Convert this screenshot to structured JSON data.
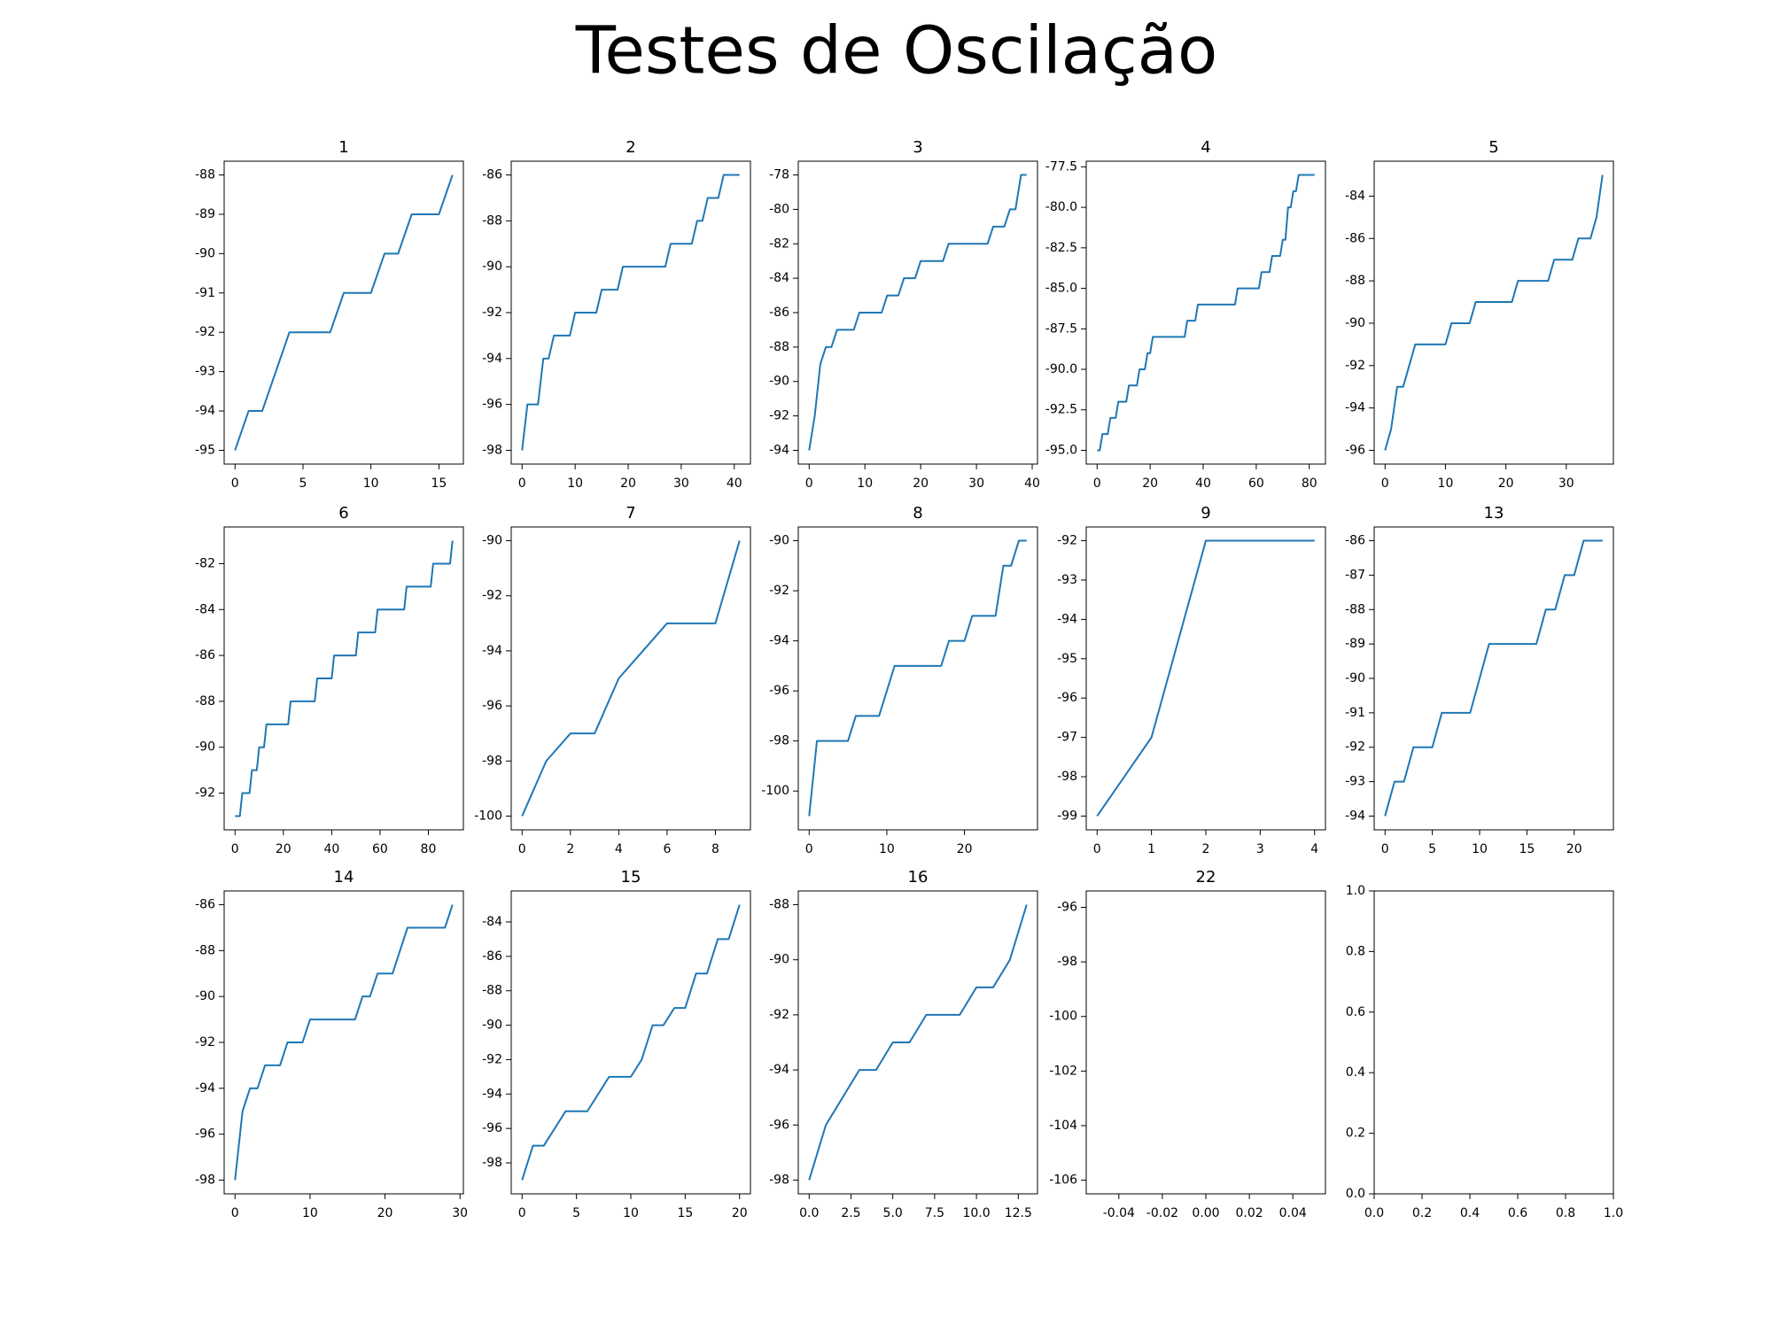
{
  "title": "Testes de Oscilação",
  "chart_data": [
    {
      "type": "line",
      "title": "1",
      "color": "#1f77b4",
      "x": [
        0,
        1,
        2,
        3,
        4,
        5,
        6,
        7,
        8,
        9,
        10,
        11,
        12,
        13,
        14,
        15,
        16
      ],
      "values": [
        -95,
        -94,
        -94,
        -93,
        -92,
        -92,
        -92,
        -92,
        -91,
        -91,
        -91,
        -90,
        -90,
        -89,
        -89,
        -89,
        -88
      ],
      "xlim": [
        -0.8,
        16.8
      ],
      "ylim": [
        -95.35,
        -87.65
      ],
      "xticks": [
        0,
        5,
        10,
        15
      ],
      "yticks": [
        -95,
        -94,
        -93,
        -92,
        -91,
        -90,
        -89,
        -88
      ]
    },
    {
      "type": "line",
      "title": "2",
      "color": "#1f77b4",
      "x": [
        0,
        1,
        2,
        3,
        4,
        5,
        6,
        7,
        8,
        9,
        10,
        11,
        12,
        13,
        14,
        15,
        16,
        17,
        18,
        19,
        20,
        21,
        22,
        23,
        24,
        25,
        26,
        27,
        28,
        29,
        30,
        31,
        32,
        33,
        34,
        35,
        36,
        37,
        38,
        39,
        40,
        41
      ],
      "values": [
        -98,
        -96,
        -96,
        -96,
        -94,
        -94,
        -93,
        -93,
        -93,
        -93,
        -92,
        -92,
        -92,
        -92,
        -92,
        -91,
        -91,
        -91,
        -91,
        -90,
        -90,
        -90,
        -90,
        -90,
        -90,
        -90,
        -90,
        -90,
        -89,
        -89,
        -89,
        -89,
        -89,
        -88,
        -88,
        -87,
        -87,
        -87,
        -86,
        -86,
        -86,
        -86
      ],
      "xlim": [
        -2.05,
        43.05
      ],
      "ylim": [
        -98.6,
        -85.4
      ],
      "xticks": [
        0,
        10,
        20,
        30,
        40
      ],
      "yticks": [
        -98,
        -96,
        -94,
        -92,
        -90,
        -88,
        -86
      ]
    },
    {
      "type": "line",
      "title": "3",
      "color": "#1f77b4",
      "x": [
        0,
        1,
        2,
        3,
        4,
        5,
        6,
        7,
        8,
        9,
        10,
        11,
        12,
        13,
        14,
        15,
        16,
        17,
        18,
        19,
        20,
        21,
        22,
        23,
        24,
        25,
        26,
        27,
        28,
        29,
        30,
        31,
        32,
        33,
        34,
        35,
        36,
        37,
        38,
        39
      ],
      "values": [
        -94,
        -92,
        -89,
        -88,
        -88,
        -87,
        -87,
        -87,
        -87,
        -86,
        -86,
        -86,
        -86,
        -86,
        -85,
        -85,
        -85,
        -84,
        -84,
        -84,
        -83,
        -83,
        -83,
        -83,
        -83,
        -82,
        -82,
        -82,
        -82,
        -82,
        -82,
        -82,
        -82,
        -81,
        -81,
        -81,
        -80,
        -80,
        -78,
        -78
      ],
      "xlim": [
        -1.95,
        40.95
      ],
      "ylim": [
        -94.8,
        -77.2
      ],
      "xticks": [
        0,
        10,
        20,
        30,
        40
      ],
      "yticks": [
        -94,
        -92,
        -90,
        -88,
        -86,
        -84,
        -82,
        -80,
        -78
      ]
    },
    {
      "type": "line",
      "title": "4",
      "color": "#1f77b4",
      "x": [
        0,
        1,
        2,
        3,
        4,
        5,
        6,
        7,
        8,
        9,
        10,
        11,
        12,
        13,
        14,
        15,
        16,
        17,
        18,
        19,
        20,
        21,
        22,
        23,
        24,
        25,
        26,
        27,
        28,
        29,
        30,
        31,
        32,
        33,
        34,
        35,
        36,
        37,
        38,
        39,
        40,
        41,
        42,
        43,
        44,
        45,
        46,
        47,
        48,
        49,
        50,
        51,
        52,
        53,
        54,
        55,
        56,
        57,
        58,
        59,
        60,
        61,
        62,
        63,
        64,
        65,
        66,
        67,
        68,
        69,
        70,
        71,
        72,
        73,
        74,
        75,
        76,
        77,
        78,
        79,
        80,
        81,
        82
      ],
      "values": [
        -95,
        -95,
        -94,
        -94,
        -94,
        -93,
        -93,
        -93,
        -92,
        -92,
        -92,
        -92,
        -91,
        -91,
        -91,
        -91,
        -90,
        -90,
        -90,
        -89,
        -89,
        -88,
        -88,
        -88,
        -88,
        -88,
        -88,
        -88,
        -88,
        -88,
        -88,
        -88,
        -88,
        -88,
        -87,
        -87,
        -87,
        -87,
        -86,
        -86,
        -86,
        -86,
        -86,
        -86,
        -86,
        -86,
        -86,
        -86,
        -86,
        -86,
        -86,
        -86,
        -86,
        -85,
        -85,
        -85,
        -85,
        -85,
        -85,
        -85,
        -85,
        -85,
        -84,
        -84,
        -84,
        -84,
        -83,
        -83,
        -83,
        -83,
        -82,
        -82,
        -80,
        -80,
        -79,
        -79,
        -78,
        -78,
        -78,
        -78,
        -78,
        -78,
        -78
      ],
      "xlim": [
        -4.1,
        86.1
      ],
      "ylim": [
        -95.85,
        -77.15
      ],
      "xticks": [
        0,
        20,
        40,
        60,
        80
      ],
      "yticks": [
        {
          "value": -95,
          "label": "-95.0"
        },
        -92.5,
        {
          "value": -90,
          "label": "-90.0"
        },
        -87.5,
        {
          "value": -85,
          "label": "-85.0"
        },
        -82.5,
        {
          "value": -80,
          "label": "-80.0"
        },
        -77.5
      ]
    },
    {
      "type": "line",
      "title": "5",
      "color": "#1f77b4",
      "x": [
        0,
        1,
        2,
        3,
        4,
        5,
        6,
        7,
        8,
        9,
        10,
        11,
        12,
        13,
        14,
        15,
        16,
        17,
        18,
        19,
        20,
        21,
        22,
        23,
        24,
        25,
        26,
        27,
        28,
        29,
        30,
        31,
        32,
        33,
        34,
        35,
        36
      ],
      "values": [
        -96,
        -95,
        -93,
        -93,
        -92,
        -91,
        -91,
        -91,
        -91,
        -91,
        -91,
        -90,
        -90,
        -90,
        -90,
        -89,
        -89,
        -89,
        -89,
        -89,
        -89,
        -89,
        -88,
        -88,
        -88,
        -88,
        -88,
        -88,
        -87,
        -87,
        -87,
        -87,
        -86,
        -86,
        -86,
        -85,
        -83
      ],
      "xlim": [
        -1.8,
        37.8
      ],
      "ylim": [
        -96.65,
        -82.35
      ],
      "xticks": [
        0,
        10,
        20,
        30
      ],
      "yticks": [
        -96,
        -94,
        -92,
        -90,
        -88,
        -86,
        -84
      ]
    },
    {
      "type": "line",
      "title": "6",
      "color": "#1f77b4",
      "x": [
        0,
        1,
        2,
        3,
        4,
        5,
        6,
        7,
        8,
        9,
        10,
        11,
        12,
        13,
        14,
        15,
        16,
        17,
        18,
        19,
        20,
        21,
        22,
        23,
        24,
        25,
        26,
        27,
        28,
        29,
        30,
        31,
        32,
        33,
        34,
        35,
        36,
        37,
        38,
        39,
        40,
        41,
        42,
        43,
        44,
        45,
        46,
        47,
        48,
        49,
        50,
        51,
        52,
        53,
        54,
        55,
        56,
        57,
        58,
        59,
        60,
        61,
        62,
        63,
        64,
        65,
        66,
        67,
        68,
        69,
        70,
        71,
        72,
        73,
        74,
        75,
        76,
        77,
        78,
        79,
        80,
        81,
        82,
        83,
        84,
        85,
        86,
        87,
        88,
        89,
        90
      ],
      "values": [
        -93,
        -93,
        -93,
        -92,
        -92,
        -92,
        -92,
        -91,
        -91,
        -91,
        -90,
        -90,
        -90,
        -89,
        -89,
        -89,
        -89,
        -89,
        -89,
        -89,
        -89,
        -89,
        -89,
        -88,
        -88,
        -88,
        -88,
        -88,
        -88,
        -88,
        -88,
        -88,
        -88,
        -88,
        -87,
        -87,
        -87,
        -87,
        -87,
        -87,
        -87,
        -86,
        -86,
        -86,
        -86,
        -86,
        -86,
        -86,
        -86,
        -86,
        -86,
        -85,
        -85,
        -85,
        -85,
        -85,
        -85,
        -85,
        -85,
        -84,
        -84,
        -84,
        -84,
        -84,
        -84,
        -84,
        -84,
        -84,
        -84,
        -84,
        -84,
        -83,
        -83,
        -83,
        -83,
        -83,
        -83,
        -83,
        -83,
        -83,
        -83,
        -83,
        -82,
        -82,
        -82,
        -82,
        -82,
        -82,
        -82,
        -82,
        -81
      ],
      "xlim": [
        -4.5,
        94.5
      ],
      "ylim": [
        -93.6,
        -80.4
      ],
      "xticks": [
        0,
        20,
        40,
        60,
        80
      ],
      "yticks": [
        -92,
        -90,
        -88,
        -86,
        -84,
        -82
      ]
    },
    {
      "type": "line",
      "title": "7",
      "color": "#1f77b4",
      "x": [
        0,
        1,
        2,
        3,
        4,
        5,
        6,
        7,
        8,
        9
      ],
      "values": [
        -100,
        -98,
        -97,
        -97,
        -95,
        -94,
        -93,
        -93,
        -93,
        -90
      ],
      "xlim": [
        -0.45,
        9.45
      ],
      "ylim": [
        -100.5,
        -89.5
      ],
      "xticks": [
        0,
        2,
        4,
        6,
        8
      ],
      "yticks": [
        -100,
        -98,
        -96,
        -94,
        -92,
        -90
      ]
    },
    {
      "type": "line",
      "title": "8",
      "color": "#1f77b4",
      "x": [
        0,
        1,
        2,
        3,
        4,
        5,
        6,
        7,
        8,
        9,
        10,
        11,
        12,
        13,
        14,
        15,
        16,
        17,
        18,
        19,
        20,
        21,
        22,
        23,
        24,
        25,
        26,
        27,
        28
      ],
      "values": [
        -101,
        -98,
        -98,
        -98,
        -98,
        -98,
        -97,
        -97,
        -97,
        -97,
        -96,
        -95,
        -95,
        -95,
        -95,
        -95,
        -95,
        -95,
        -94,
        -94,
        -94,
        -93,
        -93,
        -93,
        -93,
        -91,
        -91,
        -90,
        -90
      ],
      "xlim": [
        -1.4,
        29.4
      ],
      "ylim": [
        -101.55,
        -89.45
      ],
      "xticks": [
        0,
        10,
        20
      ],
      "yticks": [
        -100,
        -98,
        -96,
        -94,
        -92,
        -90
      ]
    },
    {
      "type": "line",
      "title": "9",
      "color": "#1f77b4",
      "x": [
        0,
        1,
        2,
        3,
        4
      ],
      "values": [
        -99,
        -97,
        -92,
        -92,
        -92
      ],
      "xlim": [
        -0.2,
        4.2
      ],
      "ylim": [
        -99.35,
        -91.65
      ],
      "xticks": [
        0,
        1,
        2,
        3,
        4
      ],
      "yticks": [
        -99,
        -98,
        -97,
        -96,
        -95,
        -94,
        -93,
        -92
      ]
    },
    {
      "type": "line",
      "title": "13",
      "color": "#1f77b4",
      "x": [
        0,
        1,
        2,
        3,
        4,
        5,
        6,
        7,
        8,
        9,
        10,
        11,
        12,
        13,
        14,
        15,
        16,
        17,
        18,
        19,
        20,
        21,
        22,
        23
      ],
      "values": [
        -94,
        -93,
        -93,
        -92,
        -92,
        -92,
        -91,
        -91,
        -91,
        -91,
        -90,
        -89,
        -89,
        -89,
        -89,
        -89,
        -89,
        -88,
        -88,
        -87,
        -87,
        -86,
        -86,
        -86
      ],
      "xlim": [
        -1.15,
        24.15
      ],
      "ylim": [
        -94.4,
        -85.6
      ],
      "xticks": [
        0,
        5,
        10,
        15,
        20
      ],
      "yticks": [
        -94,
        -93,
        -92,
        -91,
        -90,
        -89,
        -88,
        -87,
        -86
      ]
    },
    {
      "type": "line",
      "title": "14",
      "color": "#1f77b4",
      "x": [
        0,
        1,
        2,
        3,
        4,
        5,
        6,
        7,
        8,
        9,
        10,
        11,
        12,
        13,
        14,
        15,
        16,
        17,
        18,
        19,
        20,
        21,
        22,
        23,
        24,
        25,
        26,
        27,
        28,
        29
      ],
      "values": [
        -98,
        -95,
        -94,
        -94,
        -93,
        -93,
        -93,
        -92,
        -92,
        -92,
        -91,
        -91,
        -91,
        -91,
        -91,
        -91,
        -91,
        -90,
        -90,
        -89,
        -89,
        -89,
        -88,
        -87,
        -87,
        -87,
        -87,
        -87,
        -87,
        -86
      ],
      "xlim": [
        -1.45,
        30.45
      ],
      "ylim": [
        -98.6,
        -85.4
      ],
      "xticks": [
        0,
        10,
        20,
        30
      ],
      "yticks": [
        -98,
        -96,
        -94,
        -92,
        -90,
        -88,
        -86
      ]
    },
    {
      "type": "line",
      "title": "15",
      "color": "#1f77b4",
      "x": [
        0,
        1,
        2,
        3,
        4,
        5,
        6,
        7,
        8,
        9,
        10,
        11,
        12,
        13,
        14,
        15,
        16,
        17,
        18,
        19,
        20
      ],
      "values": [
        -99,
        -97,
        -97,
        -96,
        -95,
        -95,
        -95,
        -94,
        -93,
        -93,
        -93,
        -92,
        -90,
        -90,
        -89,
        -89,
        -87,
        -87,
        -85,
        -85,
        -83
      ],
      "xlim": [
        -1,
        21
      ],
      "ylim": [
        -99.8,
        -82.2
      ],
      "xticks": [
        0,
        5,
        10,
        15,
        20
      ],
      "yticks": [
        -98,
        -96,
        -94,
        -92,
        -90,
        -88,
        -86,
        -84
      ]
    },
    {
      "type": "line",
      "title": "16",
      "color": "#1f77b4",
      "x": [
        0,
        1,
        2,
        3,
        4,
        5,
        6,
        7,
        8,
        9,
        10,
        11,
        12,
        13
      ],
      "values": [
        -98,
        -96,
        -95,
        -94,
        -94,
        -93,
        -93,
        -92,
        -92,
        -92,
        -91,
        -91,
        -90,
        -88
      ],
      "xlim": [
        -0.65,
        13.65
      ],
      "ylim": [
        -98.5,
        -87.5
      ],
      "xticks": [
        {
          "value": 0,
          "label": "0.0"
        },
        2.5,
        {
          "value": 5,
          "label": "5.0"
        },
        7.5,
        {
          "value": 10,
          "label": "10.0"
        },
        12.5
      ],
      "yticks": [
        -98,
        -96,
        -94,
        -92,
        -90,
        -88
      ]
    },
    {
      "type": "line",
      "title": "22",
      "xlim": [
        -0.055,
        0.055
      ],
      "ylim": [
        -106.5,
        -95.4
      ],
      "xticks": [
        -0.04,
        -0.02,
        {
          "value": 0,
          "label": "0.00"
        },
        0.02,
        0.04
      ],
      "yticks": [
        -106,
        -104,
        -102,
        -100,
        -98,
        -96
      ]
    },
    {
      "type": "line",
      "xlim": [
        0,
        1
      ],
      "ylim": [
        0,
        1
      ],
      "xticks": [
        {
          "value": 0,
          "label": "0.0"
        },
        0.2,
        0.4,
        0.6,
        0.8,
        {
          "value": 1,
          "label": "1.0"
        }
      ],
      "yticks": [
        {
          "value": 0,
          "label": "0.0"
        },
        0.2,
        0.4,
        0.6,
        0.8,
        {
          "value": 1,
          "label": "1.0"
        }
      ]
    }
  ]
}
